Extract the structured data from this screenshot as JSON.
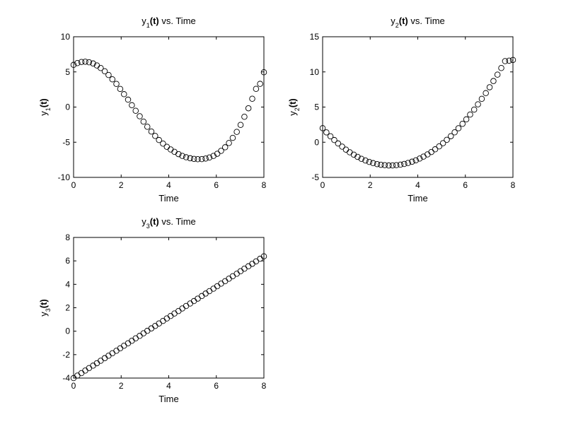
{
  "chart_data": [
    {
      "type": "scatter",
      "marker": "circle-open",
      "color": "#000000",
      "title": {
        "pre": "y",
        "sub": "1",
        "post": "(t)",
        "suffix": " vs. Time"
      },
      "xlabel": "Time",
      "ylabel": {
        "pre": "y",
        "sub": "1",
        "post": "(t)"
      },
      "xlim": [
        0,
        8
      ],
      "ylim": [
        -10,
        10
      ],
      "xticks": [
        0,
        2,
        4,
        6,
        8
      ],
      "yticks": [
        -10,
        -5,
        0,
        5,
        10
      ],
      "x": [
        0.0,
        0.16,
        0.33,
        0.49,
        0.65,
        0.82,
        0.98,
        1.14,
        1.31,
        1.47,
        1.63,
        1.8,
        1.96,
        2.12,
        2.29,
        2.45,
        2.61,
        2.78,
        2.94,
        3.1,
        3.27,
        3.43,
        3.59,
        3.76,
        3.92,
        4.08,
        4.24,
        4.41,
        4.57,
        4.73,
        4.9,
        5.06,
        5.22,
        5.39,
        5.55,
        5.71,
        5.88,
        6.04,
        6.2,
        6.37,
        6.53,
        6.69,
        6.86,
        7.02,
        7.18,
        7.35,
        7.51,
        7.67,
        7.84,
        8.0
      ],
      "y": [
        6.0,
        6.26,
        6.41,
        6.45,
        6.37,
        6.2,
        5.92,
        5.55,
        5.09,
        4.56,
        3.95,
        3.29,
        2.58,
        1.83,
        1.05,
        0.26,
        -0.53,
        -1.31,
        -2.07,
        -2.8,
        -3.48,
        -4.11,
        -4.69,
        -5.2,
        -5.65,
        -6.03,
        -6.37,
        -6.69,
        -6.95,
        -7.14,
        -7.28,
        -7.37,
        -7.41,
        -7.4,
        -7.32,
        -7.17,
        -6.95,
        -6.64,
        -6.23,
        -5.72,
        -5.11,
        -4.38,
        -3.53,
        -2.54,
        -1.38,
        -0.17,
        1.18,
        2.59,
        3.3,
        4.95
      ]
    },
    {
      "type": "scatter",
      "marker": "circle-open",
      "color": "#000000",
      "title": {
        "pre": "y",
        "sub": "2",
        "post": "(t)",
        "suffix": " vs. Time"
      },
      "xlabel": "Time",
      "ylabel": {
        "pre": "y",
        "sub": "2",
        "post": "(t)"
      },
      "xlim": [
        0,
        8
      ],
      "ylim": [
        -5,
        15
      ],
      "xticks": [
        0,
        2,
        4,
        6,
        8
      ],
      "yticks": [
        -5,
        0,
        5,
        10,
        15
      ],
      "x": [
        0.0,
        0.16,
        0.33,
        0.49,
        0.65,
        0.82,
        0.98,
        1.14,
        1.31,
        1.47,
        1.63,
        1.8,
        1.96,
        2.12,
        2.29,
        2.45,
        2.61,
        2.78,
        2.94,
        3.1,
        3.27,
        3.43,
        3.59,
        3.76,
        3.92,
        4.08,
        4.24,
        4.41,
        4.57,
        4.73,
        4.9,
        5.06,
        5.22,
        5.39,
        5.55,
        5.71,
        5.88,
        6.04,
        6.2,
        6.37,
        6.53,
        6.69,
        6.86,
        7.02,
        7.18,
        7.35,
        7.51,
        7.67,
        7.84,
        8.0
      ],
      "y": [
        2.0,
        1.4,
        0.84,
        0.31,
        -0.18,
        -0.63,
        -1.05,
        -1.43,
        -1.77,
        -2.08,
        -2.36,
        -2.6,
        -2.8,
        -2.97,
        -3.11,
        -3.21,
        -3.27,
        -3.31,
        -3.3,
        -3.27,
        -3.19,
        -3.09,
        -2.95,
        -2.77,
        -2.57,
        -2.32,
        -2.05,
        -1.73,
        -1.39,
        -1.01,
        -0.59,
        -0.14,
        0.34,
        0.86,
        1.41,
        1.99,
        2.61,
        3.25,
        3.93,
        4.64,
        5.39,
        6.17,
        6.98,
        7.82,
        8.7,
        9.61,
        10.55,
        11.53,
        11.6,
        11.7
      ]
    },
    {
      "type": "scatter",
      "marker": "circle-open",
      "color": "#000000",
      "title": {
        "pre": "y",
        "sub": "3",
        "post": "(t)",
        "suffix": " vs. Time"
      },
      "xlabel": "Time",
      "ylabel": {
        "pre": "y",
        "sub": "3",
        "post": "(t)"
      },
      "xlim": [
        0,
        8
      ],
      "ylim": [
        -4,
        8
      ],
      "xticks": [
        0,
        2,
        4,
        6,
        8
      ],
      "yticks": [
        -4,
        -2,
        0,
        2,
        4,
        6,
        8
      ],
      "x": [
        0.0,
        0.16,
        0.33,
        0.49,
        0.65,
        0.82,
        0.98,
        1.14,
        1.31,
        1.47,
        1.63,
        1.8,
        1.96,
        2.12,
        2.29,
        2.45,
        2.61,
        2.78,
        2.94,
        3.1,
        3.27,
        3.43,
        3.59,
        3.76,
        3.92,
        4.08,
        4.24,
        4.41,
        4.57,
        4.73,
        4.9,
        5.06,
        5.22,
        5.39,
        5.55,
        5.71,
        5.88,
        6.04,
        6.2,
        6.37,
        6.53,
        6.69,
        6.86,
        7.02,
        7.18,
        7.35,
        7.51,
        7.67,
        7.84,
        8.0
      ],
      "y": [
        -4.0,
        -3.79,
        -3.58,
        -3.36,
        -3.15,
        -2.94,
        -2.73,
        -2.52,
        -2.3,
        -2.09,
        -1.88,
        -1.67,
        -1.46,
        -1.24,
        -1.03,
        -0.82,
        -0.61,
        -0.4,
        -0.18,
        0.03,
        0.24,
        0.45,
        0.66,
        0.88,
        1.09,
        1.3,
        1.51,
        1.72,
        1.94,
        2.15,
        2.36,
        2.57,
        2.78,
        3.0,
        3.21,
        3.42,
        3.63,
        3.84,
        4.06,
        4.27,
        4.48,
        4.69,
        4.9,
        5.12,
        5.33,
        5.54,
        5.75,
        5.96,
        6.18,
        6.39
      ]
    }
  ]
}
